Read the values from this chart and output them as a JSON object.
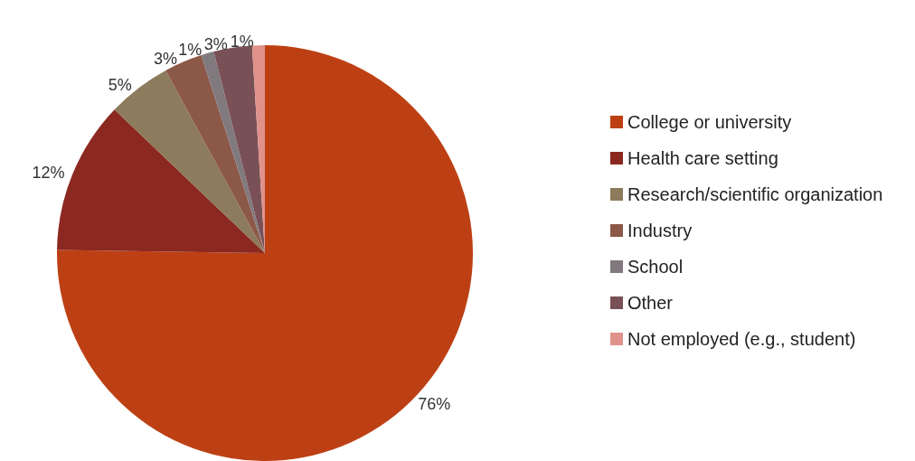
{
  "chart_data": {
    "type": "pie",
    "categories": [
      "College or university",
      "Health care setting",
      "Research/scientific organization",
      "Industry",
      "School",
      "Other",
      "Not employed (e.g., student)"
    ],
    "values": [
      76,
      12,
      5,
      3,
      1,
      3,
      1
    ],
    "colors": [
      "#bd4014",
      "#8b2820",
      "#8c7b5c",
      "#8c5848",
      "#807a7e",
      "#7a5057",
      "#e0928a"
    ],
    "value_labels": [
      "76%",
      "12%",
      "5%",
      "3%",
      "1%",
      "3%",
      "1%"
    ],
    "legend": "right"
  }
}
